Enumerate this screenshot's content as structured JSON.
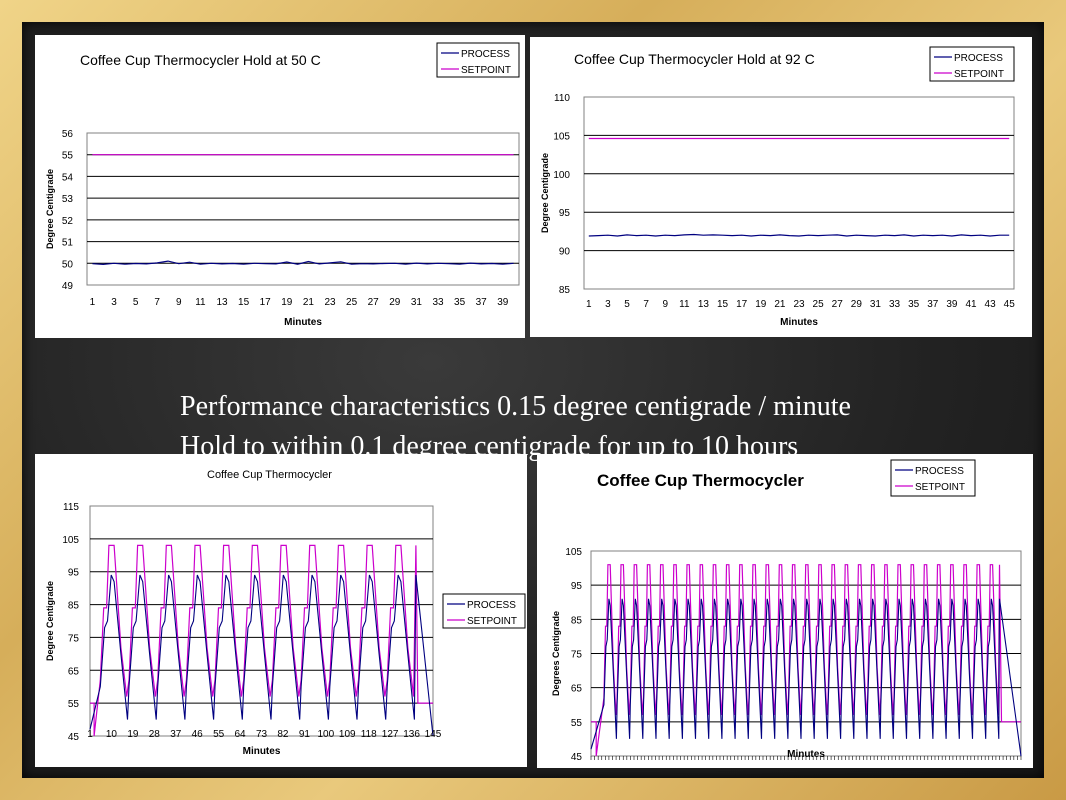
{
  "caption": {
    "line1": "Performance characteristics 0.15 degree centigrade / minute",
    "line2": "Hold to within 0.1 degree centigrade for up to 10 hours"
  },
  "colors": {
    "process": "#000080",
    "setpoint": "#cc00cc",
    "board": "#1e1e1e",
    "frame": "#e2bf6e"
  },
  "chart_data": [
    {
      "type": "line",
      "title": "Coffee Cup Thermocycler Hold at 50 C",
      "xlabel": "Minutes",
      "ylabel": "Degree Centigrade",
      "ylim": [
        49,
        56
      ],
      "yticks": [
        "49",
        "50",
        "51",
        "52",
        "53",
        "54",
        "55",
        "56"
      ],
      "xticks": [
        "1",
        "3",
        "5",
        "7",
        "9",
        "11",
        "13",
        "15",
        "17",
        "19",
        "21",
        "23",
        "25",
        "27",
        "29",
        "31",
        "33",
        "35",
        "37",
        "39"
      ],
      "x_count": 40,
      "grid": true,
      "legend_position": "top-right",
      "legend": [
        "PROCESS",
        "SETPOINT"
      ],
      "series": [
        {
          "name": "PROCESS",
          "values": [
            49.98,
            49.95,
            50.0,
            49.96,
            49.99,
            49.97,
            50.02,
            50.1,
            49.98,
            50.05,
            49.96,
            50.0,
            49.97,
            49.99,
            49.96,
            50.0,
            49.98,
            49.97,
            50.06,
            49.96,
            50.08,
            49.97,
            50.02,
            50.07,
            49.96,
            49.98,
            49.97,
            49.99,
            50.0,
            49.96,
            50.01,
            49.97,
            50.0,
            49.98,
            49.96,
            50.01,
            49.97,
            49.99,
            49.96,
            50.0
          ]
        },
        {
          "name": "SETPOINT",
          "values": [
            55,
            55,
            55,
            55,
            55,
            55,
            55,
            55,
            55,
            55,
            55,
            55,
            55,
            55,
            55,
            55,
            55,
            55,
            55,
            55,
            55,
            55,
            55,
            55,
            55,
            55,
            55,
            55,
            55,
            55,
            55,
            55,
            55,
            55,
            55,
            55,
            55,
            55,
            55,
            55
          ]
        }
      ]
    },
    {
      "type": "line",
      "title": "Coffee Cup Thermocycler Hold at 92 C",
      "xlabel": "Minutes",
      "ylabel": "Degree Centigrade",
      "ylim": [
        85,
        110
      ],
      "yticks": [
        "85",
        "90",
        "95",
        "100",
        "105",
        "110"
      ],
      "xticks": [
        "1",
        "3",
        "5",
        "7",
        "9",
        "11",
        "13",
        "15",
        "17",
        "19",
        "21",
        "23",
        "25",
        "27",
        "29",
        "31",
        "33",
        "35",
        "37",
        "39",
        "41",
        "43",
        "45"
      ],
      "x_count": 45,
      "grid": true,
      "legend_position": "top-right",
      "legend": [
        "PROCESS",
        "SETPOINT"
      ],
      "series": [
        {
          "name": "PROCESS",
          "values": [
            91.9,
            91.95,
            92.0,
            91.9,
            92.05,
            91.95,
            92.0,
            91.9,
            92.0,
            91.95,
            92.05,
            92.1,
            92.0,
            92.05,
            92.0,
            91.95,
            92.0,
            91.9,
            92.0,
            91.95,
            92.05,
            91.95,
            91.9,
            92.0,
            91.95,
            92.0,
            92.05,
            91.9,
            92.0,
            91.95,
            91.9,
            92.0,
            91.95,
            92.05,
            91.9,
            92.0,
            91.95,
            92.0,
            91.9,
            92.05,
            91.95,
            92.0,
            91.9,
            92.0,
            92.0
          ]
        },
        {
          "name": "SETPOINT",
          "values": [
            104.6,
            104.6,
            104.6,
            104.6,
            104.6,
            104.6,
            104.6,
            104.6,
            104.6,
            104.6,
            104.6,
            104.6,
            104.6,
            104.6,
            104.6,
            104.6,
            104.6,
            104.6,
            104.6,
            104.6,
            104.6,
            104.6,
            104.6,
            104.6,
            104.6,
            104.6,
            104.6,
            104.6,
            104.6,
            104.6,
            104.6,
            104.6,
            104.6,
            104.6,
            104.6,
            104.6,
            104.6,
            104.6,
            104.6,
            104.6,
            104.6,
            104.6,
            104.6,
            104.6,
            104.6
          ]
        }
      ]
    },
    {
      "type": "line",
      "title": "Coffee Cup Thermocycler",
      "xlabel": "Minutes",
      "ylabel": "Degree Centigrade",
      "ylim": [
        45,
        115
      ],
      "yticks": [
        "45",
        "55",
        "65",
        "75",
        "85",
        "95",
        "105",
        "115"
      ],
      "xticks": [
        "1",
        "10",
        "19",
        "28",
        "37",
        "46",
        "55",
        "64",
        "73",
        "82",
        "91",
        "100",
        "109",
        "118",
        "127",
        "136",
        "145"
      ],
      "x_count": 145,
      "grid": true,
      "legend_position": "right",
      "legend": [
        "PROCESS",
        "SETPOINT"
      ],
      "cycles": 11,
      "series": [
        {
          "name": "PROCESS",
          "peak": 94,
          "trough": 50
        },
        {
          "name": "SETPOINT",
          "peak": 103,
          "trough": 55
        }
      ]
    },
    {
      "type": "line",
      "title": "Coffee Cup Thermocycler",
      "xlabel": "Minutes",
      "ylabel": "Degrees Centigrade",
      "ylim": [
        45,
        105
      ],
      "yticks": [
        "45",
        "55",
        "65",
        "75",
        "85",
        "95",
        "105"
      ],
      "xticks": [],
      "grid": true,
      "legend_position": "top-right",
      "legend": [
        "PROCESS",
        "SETPOINT"
      ],
      "cycles": 30,
      "series": [
        {
          "name": "PROCESS",
          "peak": 91,
          "trough": 50
        },
        {
          "name": "SETPOINT",
          "peak": 101,
          "trough": 55
        }
      ]
    }
  ]
}
